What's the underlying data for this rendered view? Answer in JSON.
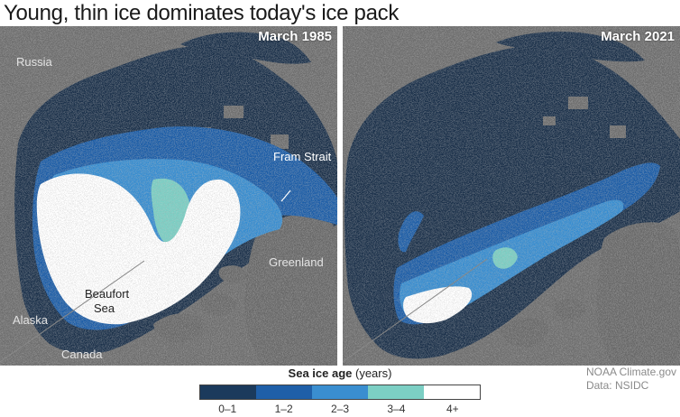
{
  "title": "Young, thin ice dominates today's ice pack",
  "panels": [
    {
      "label": "March 1985",
      "places": [
        "Russia",
        "Fram Strait",
        "Greenland",
        "Beaufort",
        "Sea",
        "Alaska",
        "Canada"
      ]
    },
    {
      "label": "March 2021"
    }
  ],
  "legend": {
    "title_bold": "Sea ice age",
    "title_unit": "(years)",
    "categories": [
      {
        "label": "0–1",
        "color": "#1b3a5c"
      },
      {
        "label": "1–2",
        "color": "#1f5fa8"
      },
      {
        "label": "2–3",
        "color": "#3a8ed0"
      },
      {
        "label": "3–4",
        "color": "#7ccfc4"
      },
      {
        "label": "4+",
        "color": "#ffffff"
      }
    ]
  },
  "credit": {
    "line1": "NOAA Climate.gov",
    "line2": "Data: NSIDC"
  },
  "colors": {
    "land": "#6f6f6f",
    "ocean": "#1f344d",
    "year1": "#1b3a5c"
  }
}
